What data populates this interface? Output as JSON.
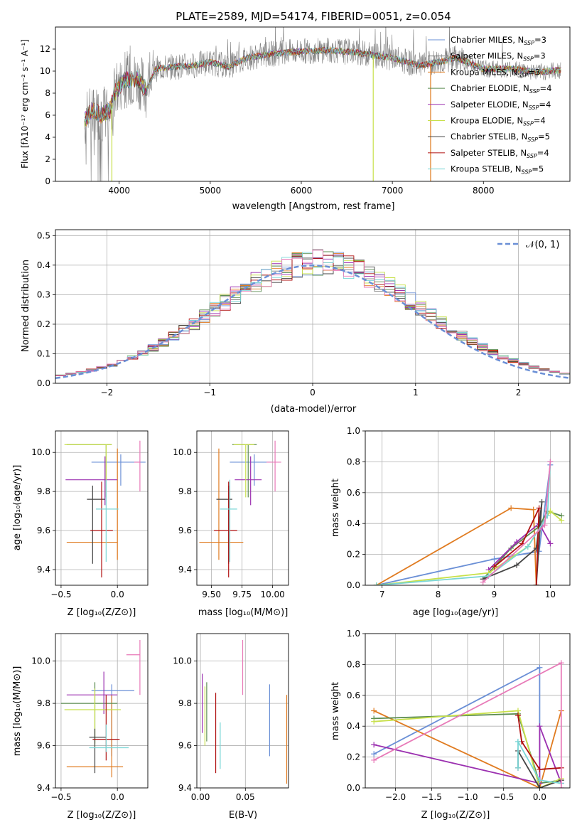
{
  "colors": {
    "chabrier_miles": "#6a8fd6",
    "salpeter_miles": "#7a7a7a",
    "kroupa_miles": "#e07b20",
    "chabrier_elodie": "#5b8c50",
    "salpeter_elodie": "#9b30b0",
    "kroupa_elodie": "#c8e04a",
    "chabrier_stelib": "#444444",
    "salpeter_stelib": "#b01010",
    "kroupa_stelib": "#7ad6d6",
    "pink": "#e87ab8",
    "data": "#808080",
    "grid": "#b0b0b0"
  },
  "chart_data": [
    {
      "id": "spectrum",
      "type": "line",
      "title": "PLATE=2589, MJD=54174, FIBERID=0051, z=0.054",
      "xlabel": "wavelength [Angstrom, rest frame]",
      "ylabel": "Flux [fλ10⁻¹⁷ erg cm⁻² s⁻¹ A⁻¹]",
      "xlim": [
        3300,
        8950
      ],
      "ylim": [
        0,
        14
      ],
      "xticks": [
        4000,
        5000,
        6000,
        7000,
        8000
      ],
      "yticks": [
        0,
        2,
        4,
        6,
        8,
        10,
        12
      ],
      "legend_position": "right",
      "legend": [
        "Chabrier MILES, N_SSP=3",
        "Salpeter MILES, N_SSP=3",
        "Kroupa MILES, N_SSP=3",
        "Chabrier ELODIE, N_SSP=4",
        "Salpeter ELODIE, N_SSP=4",
        "Kroupa ELODIE, N_SSP=4",
        "Chabrier STELIB, N_SSP=5",
        "Salpeter STELIB, N_SSP=4",
        "Kroupa STELIB, N_SSP=5"
      ],
      "continuum": [
        [
          3620,
          5.5
        ],
        [
          3700,
          6.5
        ],
        [
          3800,
          6.0
        ],
        [
          3900,
          6.5
        ],
        [
          3950,
          8.0
        ],
        [
          4050,
          9.2
        ],
        [
          4200,
          9.3
        ],
        [
          4300,
          8.3
        ],
        [
          4400,
          10.2
        ],
        [
          4600,
          10.4
        ],
        [
          4800,
          10.5
        ],
        [
          5000,
          10.8
        ],
        [
          5200,
          10.4
        ],
        [
          5400,
          11.2
        ],
        [
          5700,
          11.6
        ],
        [
          6000,
          11.8
        ],
        [
          6300,
          11.9
        ],
        [
          6600,
          11.7
        ],
        [
          7000,
          11.2
        ],
        [
          7300,
          10.5
        ],
        [
          7500,
          10.8
        ],
        [
          7700,
          11.2
        ],
        [
          8000,
          10.2
        ],
        [
          8300,
          10.2
        ],
        [
          8600,
          9.9
        ],
        [
          8850,
          10.1
        ]
      ]
    },
    {
      "id": "residuals",
      "type": "histogram",
      "xlabel": "(data-model)/error",
      "ylabel": "Normed distribution",
      "xlim": [
        -2.5,
        2.5
      ],
      "ylim": [
        0,
        0.52
      ],
      "xticks": [
        -2,
        -1,
        0,
        1,
        2
      ],
      "yticks": [
        0.0,
        0.1,
        0.2,
        0.3,
        0.4,
        0.5
      ],
      "legend": [
        "𝒩(0, 1)"
      ],
      "legend_position": "top-right",
      "bin_width": 0.1
    },
    {
      "id": "age_vs_Z",
      "type": "errorbar",
      "xlabel": "Z [log₁₀(Z/Z⊙)]",
      "ylabel": "age  [log₁₀(age/yr)]",
      "xlim": [
        -0.55,
        0.27
      ],
      "ylim": [
        9.32,
        10.11
      ],
      "xticks": [
        -0.5,
        0.0
      ],
      "yticks": [
        9.4,
        9.6,
        9.8,
        10.0
      ],
      "points": [
        {
          "x": 0.03,
          "xerr": [
            0.26,
            0.22
          ],
          "y": 9.95,
          "yerr": [
            0.12,
            0.04
          ],
          "c": "chabrier_miles"
        },
        {
          "x": 0.2,
          "xerr": [
            0.05,
            0.0
          ],
          "y": 9.95,
          "yerr": [
            0.15,
            0.11
          ],
          "c": "pink"
        },
        {
          "x": 0.0,
          "xerr": [
            0.45,
            0.0
          ],
          "y": 9.54,
          "yerr": [
            0.09,
            0.48
          ],
          "c": "kroupa_miles"
        },
        {
          "x": -0.1,
          "xerr": [
            0.35,
            0.05
          ],
          "y": 10.04,
          "yerr": [
            0.27,
            0.0
          ],
          "c": "chabrier_elodie"
        },
        {
          "x": -0.11,
          "xerr": [
            0.35,
            0.11
          ],
          "y": 9.86,
          "yerr": [
            0.13,
            0.12
          ],
          "c": "salpeter_elodie"
        },
        {
          "x": -0.1,
          "xerr": [
            0.37,
            0.05
          ],
          "y": 10.04,
          "yerr": [
            0.27,
            0.0
          ],
          "c": "kroupa_elodie"
        },
        {
          "x": -0.22,
          "xerr": [
            0.05,
            0.11
          ],
          "y": 9.76,
          "yerr": [
            0.33,
            0.07
          ],
          "c": "chabrier_stelib"
        },
        {
          "x": -0.14,
          "xerr": [
            0.1,
            0.1
          ],
          "y": 9.6,
          "yerr": [
            0.24,
            0.25
          ],
          "c": "salpeter_stelib"
        },
        {
          "x": -0.1,
          "xerr": [
            0.09,
            0.11
          ],
          "y": 9.71,
          "yerr": [
            0.27,
            0.15
          ],
          "c": "kroupa_stelib"
        }
      ]
    },
    {
      "id": "age_vs_mass",
      "type": "errorbar",
      "xlabel": "mass [log₁₀(M/M⊙)]",
      "xlim": [
        9.38,
        10.13
      ],
      "ylim": [
        9.32,
        10.11
      ],
      "xticks": [
        9.5,
        9.75,
        10.0
      ],
      "yticks": [
        9.4,
        9.6,
        9.8,
        10.0
      ],
      "points": [
        {
          "x": 9.85,
          "xerr": [
            0.2,
            0.15
          ],
          "y": 9.95,
          "yerr": [
            0.12,
            0.04
          ],
          "c": "chabrier_miles"
        },
        {
          "x": 10.02,
          "xerr": [
            0.07,
            0.05
          ],
          "y": 9.95,
          "yerr": [
            0.15,
            0.11
          ],
          "c": "pink"
        },
        {
          "x": 9.56,
          "xerr": [
            0.16,
            0.2
          ],
          "y": 9.54,
          "yerr": [
            0.09,
            0.48
          ],
          "c": "kroupa_miles"
        },
        {
          "x": 9.8,
          "xerr": [
            0.13,
            0.07
          ],
          "y": 10.04,
          "yerr": [
            0.27,
            0.0
          ],
          "c": "chabrier_elodie"
        },
        {
          "x": 9.82,
          "xerr": [
            0.13,
            0.09
          ],
          "y": 9.86,
          "yerr": [
            0.13,
            0.12
          ],
          "c": "salpeter_elodie"
        },
        {
          "x": 9.78,
          "xerr": [
            0.1,
            0.07
          ],
          "y": 10.04,
          "yerr": [
            0.27,
            0.0
          ],
          "c": "kroupa_elodie"
        },
        {
          "x": 9.64,
          "xerr": [
            0.1,
            0.03
          ],
          "y": 9.76,
          "yerr": [
            0.33,
            0.07
          ],
          "c": "chabrier_stelib"
        },
        {
          "x": 9.64,
          "xerr": [
            0.12,
            0.07
          ],
          "y": 9.6,
          "yerr": [
            0.24,
            0.25
          ],
          "c": "salpeter_stelib"
        },
        {
          "x": 9.65,
          "xerr": [
            0.08,
            0.06
          ],
          "y": 9.71,
          "yerr": [
            0.27,
            0.15
          ],
          "c": "kroupa_stelib"
        }
      ]
    },
    {
      "id": "weight_vs_age",
      "type": "line",
      "xlabel": "age  [log₁₀(age/yr)]",
      "ylabel": "mass weight",
      "xlim": [
        6.7,
        10.35
      ],
      "ylim": [
        0,
        1.0
      ],
      "xticks": [
        7,
        8,
        9,
        10
      ],
      "yticks": [
        0.0,
        0.2,
        0.4,
        0.6,
        0.8,
        1.0
      ],
      "series": [
        {
          "c": "chabrier_miles",
          "points": [
            [
              6.9,
              0.0
            ],
            [
              9.0,
              0.17
            ],
            [
              9.8,
              0.22
            ],
            [
              10.0,
              0.78
            ]
          ]
        },
        {
          "c": "kroupa_miles",
          "points": [
            [
              6.9,
              0.0
            ],
            [
              9.3,
              0.5
            ],
            [
              9.7,
              0.49
            ],
            [
              9.75,
              0.0
            ]
          ]
        },
        {
          "c": "chabrier_elodie",
          "points": [
            [
              8.8,
              0.04
            ],
            [
              9.3,
              0.24
            ],
            [
              9.8,
              0.38
            ],
            [
              9.95,
              0.48
            ],
            [
              10.2,
              0.45
            ]
          ]
        },
        {
          "c": "salpeter_elodie",
          "points": [
            [
              8.9,
              0.1
            ],
            [
              9.4,
              0.28
            ],
            [
              9.8,
              0.4
            ],
            [
              10.0,
              0.27
            ]
          ]
        },
        {
          "c": "kroupa_elodie",
          "points": [
            [
              6.9,
              0.0
            ],
            [
              8.9,
              0.08
            ],
            [
              9.6,
              0.25
            ],
            [
              10.0,
              0.48
            ],
            [
              10.2,
              0.42
            ]
          ]
        },
        {
          "c": "chabrier_stelib",
          "points": [
            [
              8.8,
              0.04
            ],
            [
              9.4,
              0.13
            ],
            [
              9.75,
              0.24
            ],
            [
              9.85,
              0.54
            ],
            [
              9.75,
              0.0
            ]
          ]
        },
        {
          "c": "salpeter_stelib",
          "points": [
            [
              9.0,
              0.12
            ],
            [
              9.5,
              0.27
            ],
            [
              9.8,
              0.5
            ],
            [
              9.75,
              0.0
            ]
          ]
        },
        {
          "c": "kroupa_stelib",
          "points": [
            [
              6.9,
              0.0
            ],
            [
              8.9,
              0.06
            ],
            [
              9.6,
              0.25
            ],
            [
              9.95,
              0.45
            ],
            [
              10.0,
              0.8
            ]
          ]
        },
        {
          "c": "pink",
          "points": [
            [
              8.8,
              0.02
            ],
            [
              9.9,
              0.39
            ],
            [
              10.0,
              0.8
            ]
          ]
        }
      ]
    },
    {
      "id": "mass_vs_Z",
      "type": "errorbar",
      "xlabel": "Z [log₁₀(Z/Z⊙)]",
      "ylabel": "mass [log₁₀(M/M⊙)]",
      "xlim": [
        -0.55,
        0.27
      ],
      "ylim": [
        9.4,
        10.13
      ],
      "xticks": [
        -0.5,
        0.0
      ],
      "yticks": [
        9.4,
        9.6,
        9.8,
        10.0
      ],
      "points": [
        {
          "x": -0.05,
          "xerr": [
            0.18,
            0.2
          ],
          "y": 9.86,
          "yerr": [
            0.31,
            0.03
          ],
          "c": "chabrier_miles"
        },
        {
          "x": 0.2,
          "xerr": [
            0.12,
            0.0
          ],
          "y": 10.03,
          "yerr": [
            0.19,
            0.07
          ],
          "c": "pink"
        },
        {
          "x": -0.05,
          "xerr": [
            0.4,
            0.1
          ],
          "y": 9.5,
          "yerr": [
            0.05,
            0.34
          ],
          "c": "kroupa_miles"
        },
        {
          "x": -0.2,
          "xerr": [
            0.3,
            0.2
          ],
          "y": 9.8,
          "yerr": [
            0.19,
            0.1
          ],
          "c": "chabrier_elodie"
        },
        {
          "x": -0.12,
          "xerr": [
            0.33,
            0.12
          ],
          "y": 9.84,
          "yerr": [
            0.09,
            0.11
          ],
          "c": "salpeter_elodie"
        },
        {
          "x": -0.2,
          "xerr": [
            0.27,
            0.23
          ],
          "y": 9.77,
          "yerr": [
            0.18,
            0.1
          ],
          "c": "kroupa_elodie"
        },
        {
          "x": -0.2,
          "xerr": [
            0.05,
            0.1
          ],
          "y": 9.64,
          "yerr": [
            0.17,
            0.04
          ],
          "c": "chabrier_stelib"
        },
        {
          "x": -0.1,
          "xerr": [
            0.12,
            0.12
          ],
          "y": 9.63,
          "yerr": [
            0.1,
            0.21
          ],
          "c": "salpeter_stelib"
        },
        {
          "x": -0.1,
          "xerr": [
            0.15,
            0.2
          ],
          "y": 9.59,
          "yerr": [
            0.02,
            0.11
          ],
          "c": "kroupa_stelib"
        }
      ]
    },
    {
      "id": "mass_vs_ebv",
      "type": "errorbar",
      "xlabel": "E(B-V)",
      "xlim": [
        -0.004,
        0.098
      ],
      "ylim": [
        9.4,
        10.13
      ],
      "xticks": [
        0.0,
        0.05
      ],
      "yticks": [
        9.4,
        9.6,
        9.8,
        10.0
      ],
      "points": [
        {
          "x": 0.077,
          "y": 9.72,
          "yerr": [
            0.17,
            0.17
          ],
          "c": "chabrier_miles"
        },
        {
          "x": 0.047,
          "y": 9.97,
          "yerr": [
            0.13,
            0.13
          ],
          "c": "pink"
        },
        {
          "x": 0.096,
          "y": 9.63,
          "yerr": [
            0.21,
            0.21
          ],
          "c": "kroupa_miles"
        },
        {
          "x": 0.007,
          "y": 9.76,
          "yerr": [
            0.14,
            0.14
          ],
          "c": "chabrier_elodie"
        },
        {
          "x": 0.002,
          "y": 9.8,
          "yerr": [
            0.14,
            0.14
          ],
          "c": "salpeter_elodie"
        },
        {
          "x": 0.005,
          "y": 9.74,
          "yerr": [
            0.14,
            0.14
          ],
          "c": "kroupa_elodie"
        },
        {
          "x": 0.017,
          "y": 9.66,
          "yerr": [
            0.19,
            0.19
          ],
          "c": "salpeter_stelib"
        },
        {
          "x": 0.022,
          "y": 9.6,
          "yerr": [
            0.11,
            0.11
          ],
          "c": "kroupa_stelib"
        }
      ]
    },
    {
      "id": "weight_vs_Z",
      "type": "line",
      "xlabel": "Z [log₁₀(Z/Z⊙)]",
      "ylabel": "mass weight",
      "xlim": [
        -2.42,
        0.42
      ],
      "ylim": [
        0,
        1.0
      ],
      "xticks": [
        -2.0,
        -1.5,
        -1.0,
        -0.5,
        0.0
      ],
      "yticks": [
        0.0,
        0.2,
        0.4,
        0.6,
        0.8,
        1.0
      ],
      "series": [
        {
          "c": "chabrier_miles",
          "points": [
            [
              -2.3,
              0.22
            ],
            [
              0.0,
              0.78
            ],
            [
              0.0,
              0.0
            ]
          ]
        },
        {
          "c": "kroupa_miles",
          "points": [
            [
              -2.3,
              0.5
            ],
            [
              0.0,
              0.0
            ],
            [
              0.3,
              0.5
            ]
          ]
        },
        {
          "c": "chabrier_elodie",
          "points": [
            [
              -2.3,
              0.45
            ],
            [
              -0.3,
              0.48
            ],
            [
              0.0,
              0.03
            ],
            [
              0.3,
              0.05
            ]
          ]
        },
        {
          "c": "salpeter_elodie",
          "points": [
            [
              -2.3,
              0.28
            ],
            [
              0.0,
              0.03
            ],
            [
              0.0,
              0.4
            ],
            [
              0.3,
              0.03
            ]
          ]
        },
        {
          "c": "kroupa_elodie",
          "points": [
            [
              -2.3,
              0.43
            ],
            [
              -0.3,
              0.5
            ],
            [
              0.0,
              0.0
            ],
            [
              0.3,
              0.06
            ]
          ]
        },
        {
          "c": "chabrier_stelib",
          "points": [
            [
              -0.3,
              0.13
            ],
            [
              -0.3,
              0.24
            ],
            [
              0.0,
              0.0
            ],
            [
              0.3,
              0.05
            ]
          ]
        },
        {
          "c": "salpeter_stelib",
          "points": [
            [
              -0.3,
              0.47
            ],
            [
              -0.25,
              0.3
            ],
            [
              0.0,
              0.12
            ],
            [
              0.3,
              0.13
            ]
          ]
        },
        {
          "c": "kroupa_stelib",
          "points": [
            [
              -0.3,
              0.13
            ],
            [
              -0.3,
              0.3
            ],
            [
              0.0,
              0.05
            ],
            [
              0.3,
              0.03
            ]
          ]
        },
        {
          "c": "pink",
          "points": [
            [
              -2.3,
              0.18
            ],
            [
              0.3,
              0.81
            ],
            [
              0.3,
              0.0
            ]
          ]
        }
      ]
    }
  ]
}
